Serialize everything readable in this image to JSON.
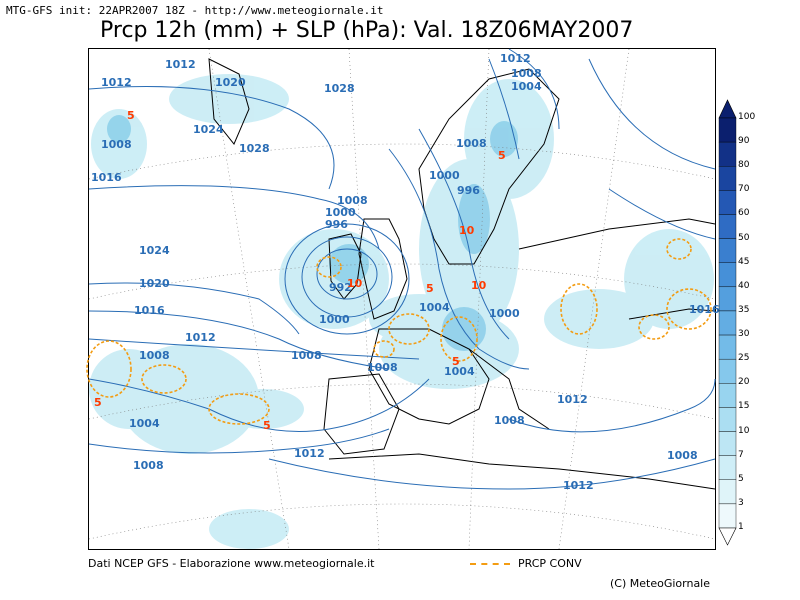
{
  "header": {
    "info": "MTG-GFS init: 22APR2007 18Z - http://www.meteogiornale.it",
    "title": "Prcp 12h (mm) + SLP (hPa): Val. 18Z06MAY2007"
  },
  "colorbar": {
    "levels": [
      "100",
      "90",
      "80",
      "70",
      "60",
      "50",
      "45",
      "40",
      "35",
      "30",
      "25",
      "20",
      "15",
      "10",
      "7",
      "5",
      "3",
      "1"
    ],
    "colors": [
      "#0b1f6e",
      "#123187",
      "#1a45a0",
      "#2458b4",
      "#2f6cc4",
      "#3a7fcf",
      "#4690d8",
      "#549fde",
      "#63ade3",
      "#73bbe8",
      "#85c8ec",
      "#98d4ef",
      "#abdef2",
      "#bde6f4",
      "#cfeef7",
      "#dff4f9",
      "#eef9fc",
      "#ffffff"
    ]
  },
  "pressure_labels": [
    "1012",
    "1020",
    "1028",
    "1024",
    "1028",
    "1012",
    "1008",
    "1016",
    "1008",
    "1004",
    "1012",
    "1008",
    "1004",
    "1000",
    "996",
    "1008",
    "1000",
    "996",
    "1024",
    "1020",
    "1016",
    "992",
    "1000",
    "1012",
    "1008",
    "1004",
    "1000",
    "1008",
    "1004",
    "1008",
    "1004",
    "1008",
    "1012",
    "1008",
    "1012",
    "1008",
    "1012",
    "1016"
  ],
  "precip_labels": [
    "5",
    "5",
    "10",
    "10",
    "5",
    "10",
    "5",
    "5",
    "5"
  ],
  "footer": {
    "source": "Dati NCEP GFS - Elaborazione www.meteogiornale.it",
    "legend": "PRCP CONV",
    "copyright": "(C) MeteoGiornale"
  }
}
